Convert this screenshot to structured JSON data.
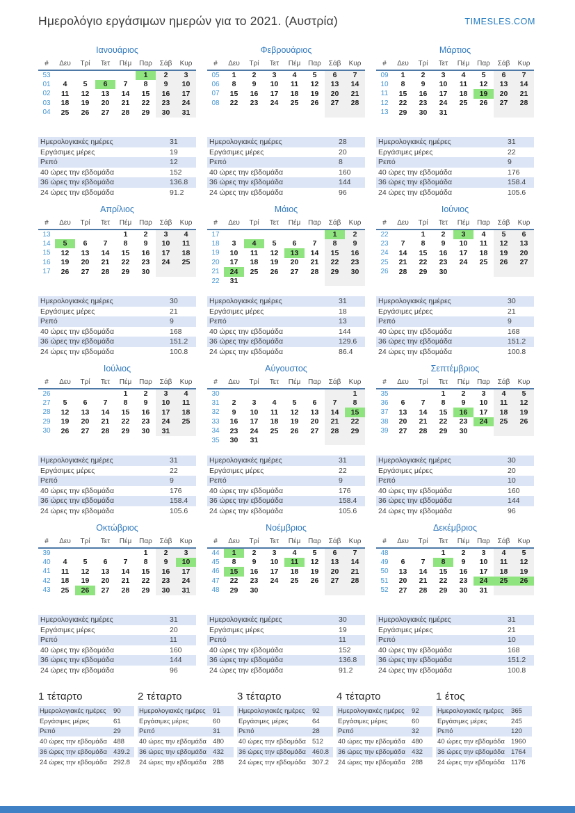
{
  "header": {
    "title": "Ημερολόγιο εργάσιμων ημερών για το 2021. (Αυστρία)",
    "brand": "TIMESLES.COM"
  },
  "day_headers": [
    "#",
    "Δευ",
    "Τρί",
    "Τετ",
    "Πέμ",
    "Παρ",
    "Σάβ",
    "Κυρ"
  ],
  "stat_labels": [
    "Ημερολογιακές ημέρες",
    "Εργάσιμες μέρες",
    "Ρεπό",
    "40 ώρες την εβδομάδα",
    "36 ώρες την εβδομάδα",
    "24 ώρες την εβδομάδα"
  ],
  "months": [
    {
      "name": "Ιανουάριος",
      "holidays": [
        1,
        6
      ],
      "weeks": [
        {
          "wn": "53",
          "days": [
            "",
            "",
            "",
            "",
            "1",
            "2",
            "3"
          ]
        },
        {
          "wn": "01",
          "days": [
            "4",
            "5",
            "6",
            "7",
            "8",
            "9",
            "10"
          ]
        },
        {
          "wn": "02",
          "days": [
            "11",
            "12",
            "13",
            "14",
            "15",
            "16",
            "17"
          ]
        },
        {
          "wn": "03",
          "days": [
            "18",
            "19",
            "20",
            "21",
            "22",
            "23",
            "24"
          ]
        },
        {
          "wn": "04",
          "days": [
            "25",
            "26",
            "27",
            "28",
            "29",
            "30",
            "31"
          ]
        }
      ],
      "stats": [
        "31",
        "19",
        "12",
        "152",
        "136.8",
        "91.2"
      ]
    },
    {
      "name": "Φεβρουάριος",
      "holidays": [],
      "weeks": [
        {
          "wn": "05",
          "days": [
            "1",
            "2",
            "3",
            "4",
            "5",
            "6",
            "7"
          ]
        },
        {
          "wn": "06",
          "days": [
            "8",
            "9",
            "10",
            "11",
            "12",
            "13",
            "14"
          ]
        },
        {
          "wn": "07",
          "days": [
            "15",
            "16",
            "17",
            "18",
            "19",
            "20",
            "21"
          ]
        },
        {
          "wn": "08",
          "days": [
            "22",
            "23",
            "24",
            "25",
            "26",
            "27",
            "28"
          ]
        }
      ],
      "stats": [
        "28",
        "20",
        "8",
        "160",
        "144",
        "96"
      ]
    },
    {
      "name": "Μάρτιος",
      "holidays": [
        19
      ],
      "weeks": [
        {
          "wn": "09",
          "days": [
            "1",
            "2",
            "3",
            "4",
            "5",
            "6",
            "7"
          ]
        },
        {
          "wn": "10",
          "days": [
            "8",
            "9",
            "10",
            "11",
            "12",
            "13",
            "14"
          ]
        },
        {
          "wn": "11",
          "days": [
            "15",
            "16",
            "17",
            "18",
            "19",
            "20",
            "21"
          ]
        },
        {
          "wn": "12",
          "days": [
            "22",
            "23",
            "24",
            "25",
            "26",
            "27",
            "28"
          ]
        },
        {
          "wn": "13",
          "days": [
            "29",
            "30",
            "31",
            "",
            "",
            "",
            ""
          ]
        }
      ],
      "stats": [
        "31",
        "22",
        "9",
        "176",
        "158.4",
        "105.6"
      ]
    },
    {
      "name": "Απρίλιος",
      "holidays": [
        5
      ],
      "weeks": [
        {
          "wn": "13",
          "days": [
            "",
            "",
            "",
            "1",
            "2",
            "3",
            "4"
          ]
        },
        {
          "wn": "14",
          "days": [
            "5",
            "6",
            "7",
            "8",
            "9",
            "10",
            "11"
          ]
        },
        {
          "wn": "15",
          "days": [
            "12",
            "13",
            "14",
            "15",
            "16",
            "17",
            "18"
          ]
        },
        {
          "wn": "16",
          "days": [
            "19",
            "20",
            "21",
            "22",
            "23",
            "24",
            "25"
          ]
        },
        {
          "wn": "17",
          "days": [
            "26",
            "27",
            "28",
            "29",
            "30",
            "",
            ""
          ]
        }
      ],
      "stats": [
        "30",
        "21",
        "9",
        "168",
        "151.2",
        "100.8"
      ]
    },
    {
      "name": "Μάιος",
      "holidays": [
        1,
        4,
        13,
        24
      ],
      "weeks": [
        {
          "wn": "17",
          "days": [
            "",
            "",
            "",
            "",
            "",
            "1",
            "2"
          ]
        },
        {
          "wn": "18",
          "days": [
            "3",
            "4",
            "5",
            "6",
            "7",
            "8",
            "9"
          ]
        },
        {
          "wn": "19",
          "days": [
            "10",
            "11",
            "12",
            "13",
            "14",
            "15",
            "16"
          ]
        },
        {
          "wn": "20",
          "days": [
            "17",
            "18",
            "19",
            "20",
            "21",
            "22",
            "23"
          ]
        },
        {
          "wn": "21",
          "days": [
            "24",
            "25",
            "26",
            "27",
            "28",
            "29",
            "30"
          ]
        },
        {
          "wn": "22",
          "days": [
            "31",
            "",
            "",
            "",
            "",
            "",
            ""
          ]
        }
      ],
      "stats": [
        "31",
        "18",
        "13",
        "144",
        "129.6",
        "86.4"
      ]
    },
    {
      "name": "Ιούνιος",
      "holidays": [
        3
      ],
      "weeks": [
        {
          "wn": "22",
          "days": [
            "",
            "1",
            "2",
            "3",
            "4",
            "5",
            "6"
          ]
        },
        {
          "wn": "23",
          "days": [
            "7",
            "8",
            "9",
            "10",
            "11",
            "12",
            "13"
          ]
        },
        {
          "wn": "24",
          "days": [
            "14",
            "15",
            "16",
            "17",
            "18",
            "19",
            "20"
          ]
        },
        {
          "wn": "25",
          "days": [
            "21",
            "22",
            "23",
            "24",
            "25",
            "26",
            "27"
          ]
        },
        {
          "wn": "26",
          "days": [
            "28",
            "29",
            "30",
            "",
            "",
            "",
            ""
          ]
        }
      ],
      "stats": [
        "30",
        "21",
        "9",
        "168",
        "151.2",
        "100.8"
      ]
    },
    {
      "name": "Ιούλιος",
      "holidays": [],
      "weeks": [
        {
          "wn": "26",
          "days": [
            "",
            "",
            "",
            "1",
            "2",
            "3",
            "4"
          ]
        },
        {
          "wn": "27",
          "days": [
            "5",
            "6",
            "7",
            "8",
            "9",
            "10",
            "11"
          ]
        },
        {
          "wn": "28",
          "days": [
            "12",
            "13",
            "14",
            "15",
            "16",
            "17",
            "18"
          ]
        },
        {
          "wn": "29",
          "days": [
            "19",
            "20",
            "21",
            "22",
            "23",
            "24",
            "25"
          ]
        },
        {
          "wn": "30",
          "days": [
            "26",
            "27",
            "28",
            "29",
            "30",
            "31",
            ""
          ]
        }
      ],
      "stats": [
        "31",
        "22",
        "9",
        "176",
        "158.4",
        "105.6"
      ]
    },
    {
      "name": "Αύγουστος",
      "holidays": [
        15
      ],
      "weeks": [
        {
          "wn": "30",
          "days": [
            "",
            "",
            "",
            "",
            "",
            "",
            "1"
          ]
        },
        {
          "wn": "31",
          "days": [
            "2",
            "3",
            "4",
            "5",
            "6",
            "7",
            "8"
          ]
        },
        {
          "wn": "32",
          "days": [
            "9",
            "10",
            "11",
            "12",
            "13",
            "14",
            "15"
          ]
        },
        {
          "wn": "33",
          "days": [
            "16",
            "17",
            "18",
            "19",
            "20",
            "21",
            "22"
          ]
        },
        {
          "wn": "34",
          "days": [
            "23",
            "24",
            "25",
            "26",
            "27",
            "28",
            "29"
          ]
        },
        {
          "wn": "35",
          "days": [
            "30",
            "31",
            "",
            "",
            "",
            "",
            ""
          ]
        }
      ],
      "stats": [
        "31",
        "22",
        "9",
        "176",
        "158.4",
        "105.6"
      ]
    },
    {
      "name": "Σεπτέμβριος",
      "holidays": [
        16,
        24
      ],
      "weeks": [
        {
          "wn": "35",
          "days": [
            "",
            "",
            "1",
            "2",
            "3",
            "4",
            "5"
          ]
        },
        {
          "wn": "36",
          "days": [
            "6",
            "7",
            "8",
            "9",
            "10",
            "11",
            "12"
          ]
        },
        {
          "wn": "37",
          "days": [
            "13",
            "14",
            "15",
            "16",
            "17",
            "18",
            "19"
          ]
        },
        {
          "wn": "38",
          "days": [
            "20",
            "21",
            "22",
            "23",
            "24",
            "25",
            "26"
          ]
        },
        {
          "wn": "39",
          "days": [
            "27",
            "28",
            "29",
            "30",
            "",
            "",
            ""
          ]
        }
      ],
      "stats": [
        "30",
        "20",
        "10",
        "160",
        "144",
        "96"
      ]
    },
    {
      "name": "Οκτώβριος",
      "holidays": [
        10,
        26
      ],
      "weeks": [
        {
          "wn": "39",
          "days": [
            "",
            "",
            "",
            "",
            "1",
            "2",
            "3"
          ]
        },
        {
          "wn": "40",
          "days": [
            "4",
            "5",
            "6",
            "7",
            "8",
            "9",
            "10"
          ]
        },
        {
          "wn": "41",
          "days": [
            "11",
            "12",
            "13",
            "14",
            "15",
            "16",
            "17"
          ]
        },
        {
          "wn": "42",
          "days": [
            "18",
            "19",
            "20",
            "21",
            "22",
            "23",
            "24"
          ]
        },
        {
          "wn": "43",
          "days": [
            "25",
            "26",
            "27",
            "28",
            "29",
            "30",
            "31"
          ]
        }
      ],
      "stats": [
        "31",
        "20",
        "11",
        "160",
        "144",
        "96"
      ]
    },
    {
      "name": "Νοέμβριος",
      "holidays": [
        1,
        11,
        15
      ],
      "weeks": [
        {
          "wn": "44",
          "days": [
            "1",
            "2",
            "3",
            "4",
            "5",
            "6",
            "7"
          ]
        },
        {
          "wn": "45",
          "days": [
            "8",
            "9",
            "10",
            "11",
            "12",
            "13",
            "14"
          ]
        },
        {
          "wn": "46",
          "days": [
            "15",
            "16",
            "17",
            "18",
            "19",
            "20",
            "21"
          ]
        },
        {
          "wn": "47",
          "days": [
            "22",
            "23",
            "24",
            "25",
            "26",
            "27",
            "28"
          ]
        },
        {
          "wn": "48",
          "days": [
            "29",
            "30",
            "",
            "",
            "",
            "",
            ""
          ]
        }
      ],
      "stats": [
        "30",
        "19",
        "11",
        "152",
        "136.8",
        "91.2"
      ]
    },
    {
      "name": "Δεκέμβριος",
      "holidays": [
        8,
        24,
        25,
        26
      ],
      "weeks": [
        {
          "wn": "48",
          "days": [
            "",
            "",
            "1",
            "2",
            "3",
            "4",
            "5"
          ]
        },
        {
          "wn": "49",
          "days": [
            "6",
            "7",
            "8",
            "9",
            "10",
            "11",
            "12"
          ]
        },
        {
          "wn": "50",
          "days": [
            "13",
            "14",
            "15",
            "16",
            "17",
            "18",
            "19"
          ]
        },
        {
          "wn": "51",
          "days": [
            "20",
            "21",
            "22",
            "23",
            "24",
            "25",
            "26"
          ]
        },
        {
          "wn": "52",
          "days": [
            "27",
            "28",
            "29",
            "30",
            "31",
            "",
            ""
          ]
        }
      ],
      "stats": [
        "31",
        "21",
        "10",
        "168",
        "151.2",
        "100.8"
      ]
    }
  ],
  "summaries": [
    {
      "name": "1 τέταρτο",
      "stats": [
        "90",
        "61",
        "29",
        "488",
        "439.2",
        "292.8"
      ]
    },
    {
      "name": "2 τέταρτο",
      "stats": [
        "91",
        "60",
        "31",
        "480",
        "432",
        "288"
      ]
    },
    {
      "name": "3 τέταρτο",
      "stats": [
        "92",
        "64",
        "28",
        "512",
        "460.8",
        "307.2"
      ]
    },
    {
      "name": "4 τέταρτο",
      "stats": [
        "92",
        "60",
        "32",
        "480",
        "432",
        "288"
      ]
    },
    {
      "name": "1 έτος",
      "stats": [
        "365",
        "245",
        "120",
        "1960",
        "1764",
        "1176"
      ]
    }
  ],
  "colors": {
    "accent_blue": "#2f78bd",
    "brand_blue": "#1e79c0",
    "week_number_blue": "#4596d3",
    "header_rule_blue": "#4e79a7",
    "holiday_green": "#90e47f",
    "weekend_gray": "#f0f0f0",
    "stats_row_blue": "#dbe5f6",
    "footer_blue": "#3f81c4"
  }
}
